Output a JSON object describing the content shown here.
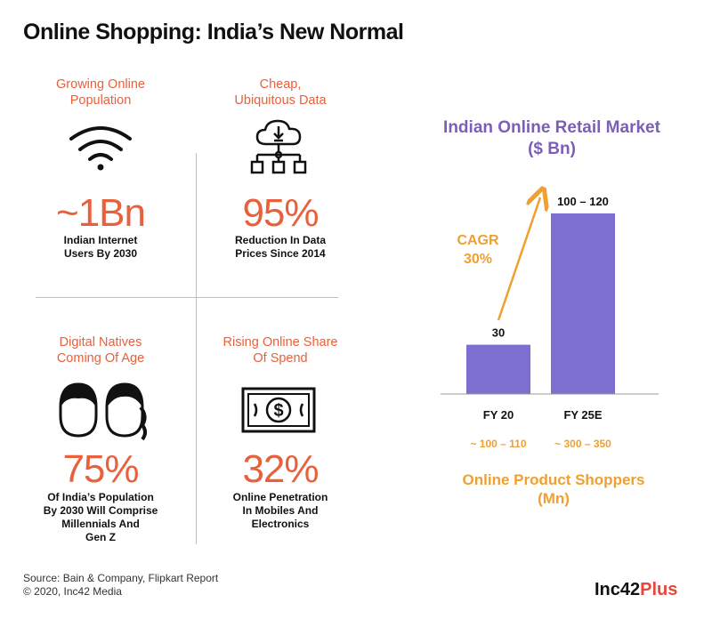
{
  "title": "Online Shopping: India’s New Normal",
  "cells": [
    {
      "heading": [
        "Growing Online",
        "Population"
      ],
      "value": "~1Bn",
      "desc": [
        "Indian Internet",
        "Users By 2030"
      ],
      "icon": "wifi-icon"
    },
    {
      "heading": [
        "Cheap,",
        "Ubiquitous Data"
      ],
      "value": "95%",
      "desc": [
        "Reduction In Data",
        "Prices Since 2014"
      ],
      "icon": "cloud-download-network-icon"
    },
    {
      "heading": [
        "Digital Natives",
        "Coming Of Age"
      ],
      "value": "75%",
      "desc": [
        "Of India’s Population",
        "By 2030 Will Comprise",
        "Millennials And",
        "Gen Z"
      ],
      "icon": "two-faces-icon"
    },
    {
      "heading": [
        "Rising Online Share",
        "Of Spend"
      ],
      "value": "32%",
      "desc": [
        "Online Penetration",
        "In Mobiles And",
        "Electronics"
      ],
      "icon": "dollar-bill-icon"
    }
  ],
  "chart_title": [
    "Indian Online Retail Market",
    "($ Bn)"
  ],
  "chart_data": {
    "type": "bar",
    "categories": [
      "FY 20",
      "FY 25E"
    ],
    "values": [
      30,
      110
    ],
    "data_labels": [
      "30",
      "100 – 120"
    ],
    "ylim": [
      0,
      130
    ],
    "annotation": [
      "CAGR",
      "30%"
    ],
    "shoppers_labels": [
      "~ 100 – 110",
      "~ 300 – 350"
    ],
    "shoppers_title": [
      "Online Product Shoppers",
      "(Mn)"
    ]
  },
  "colors": {
    "accent": "#e8603c",
    "bar": "#7b6fcf",
    "chart_title": "#7b5fb6",
    "annotation": "#f0a030"
  },
  "footer": [
    "Source: Bain & Company, Flipkart Report",
    "© 2020, Inc42 Media"
  ],
  "logo": {
    "main": "Inc42",
    "plus": "Plus"
  }
}
